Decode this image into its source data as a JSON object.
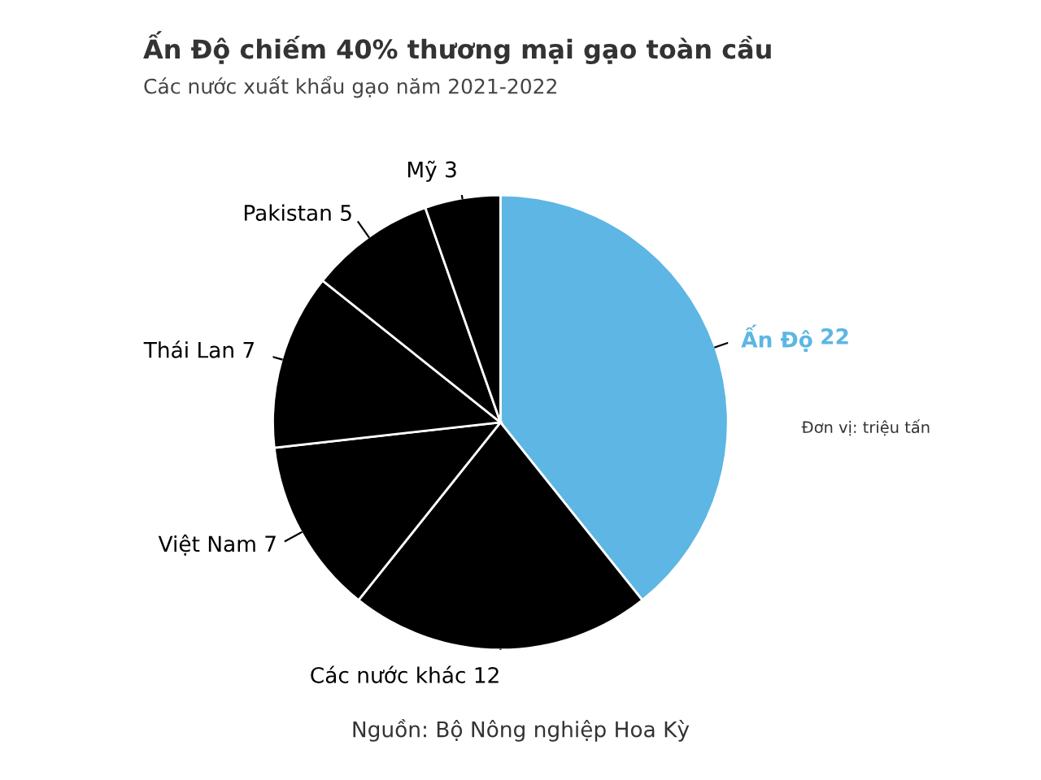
{
  "chart_data": {
    "type": "pie",
    "title": "Ấn Độ chiếm 40% thương mại gạo toàn cầu",
    "subtitle": "Các nước xuất khẩu gạo năm 2021-2022",
    "categories": [
      "Ấn Độ",
      "Các nước khác",
      "Việt Nam",
      "Thái Lan",
      "Pakistan",
      "Mỹ"
    ],
    "values": [
      22,
      12,
      7,
      7,
      5,
      3
    ],
    "colors": [
      "#5db6e4",
      "#000000",
      "#000000",
      "#000000",
      "#000000",
      "#000000"
    ],
    "data_labels": true,
    "legend": false,
    "annotations": [
      "Đơn vị: triệu tấn",
      "Nguồn: Bộ Nông nghiệp Hoa Kỳ"
    ]
  }
}
